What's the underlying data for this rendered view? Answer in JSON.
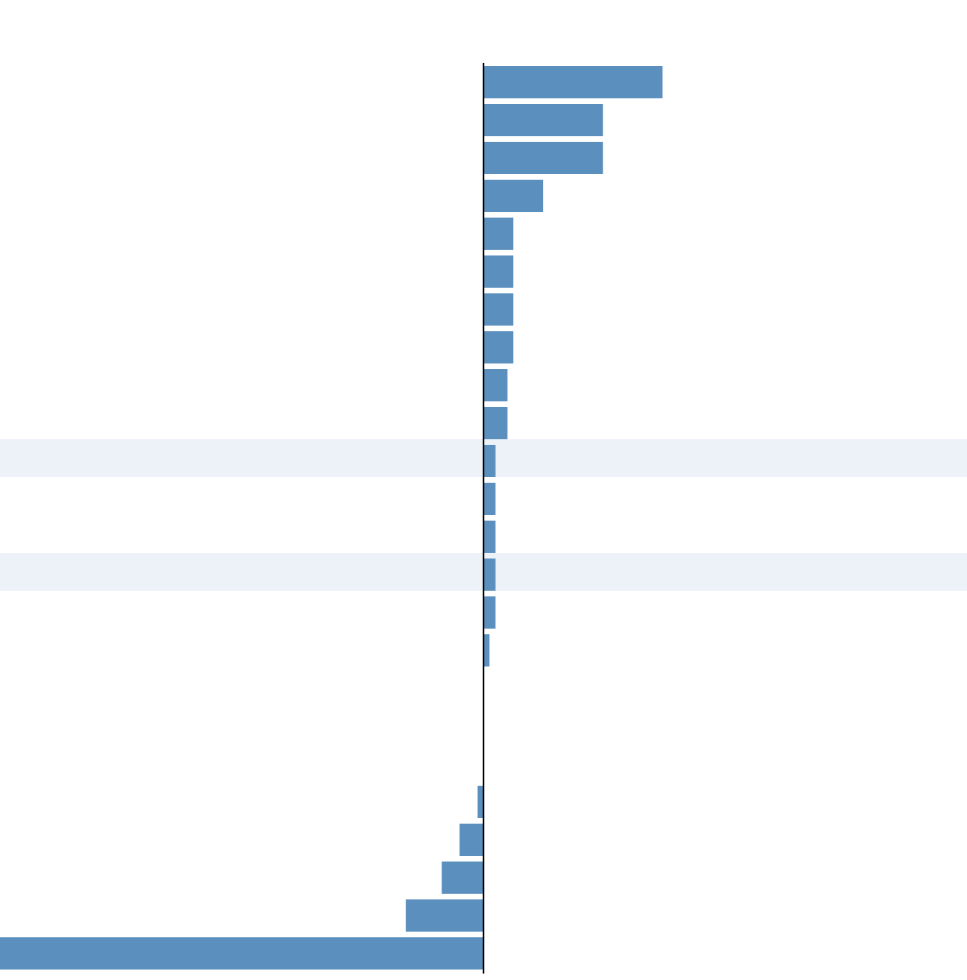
{
  "chart_data": {
    "type": "bar",
    "orientation": "horizontal",
    "values": [
      30,
      20,
      20,
      10,
      5,
      5,
      5,
      5,
      4,
      4,
      2,
      2,
      2,
      2,
      2,
      1,
      0,
      0,
      0,
      -1,
      -4,
      -7,
      -13,
      -81
    ],
    "color": "#5a8fbe",
    "xlim": [
      -81,
      81
    ],
    "highlighted_rows": [
      10,
      13
    ],
    "highlight_color": "#edf1f8"
  }
}
